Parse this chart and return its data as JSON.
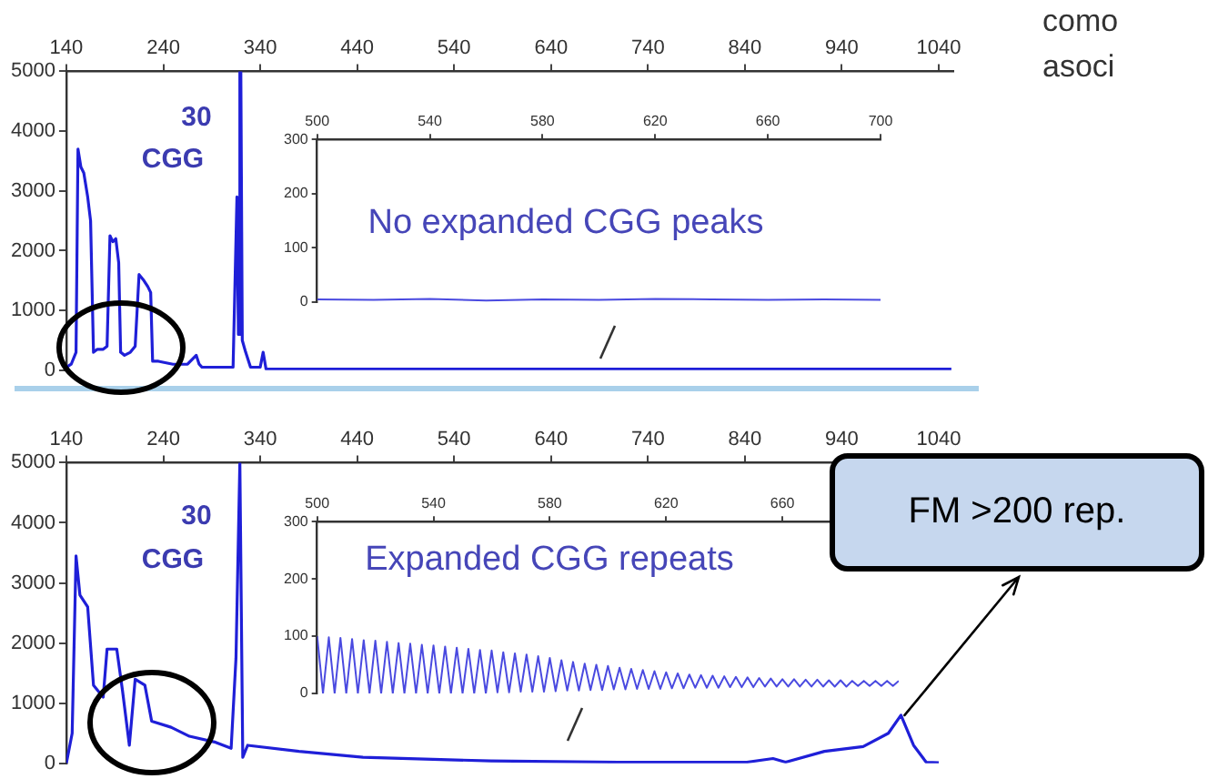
{
  "chart_data": [
    {
      "type": "line",
      "x": [
        140,
        145,
        150,
        152,
        155,
        158,
        162,
        165,
        168,
        172,
        178,
        182,
        185,
        188,
        191,
        194,
        196,
        200,
        206,
        211,
        215,
        220,
        224,
        227,
        229,
        235,
        250,
        265,
        274,
        277,
        280,
        300,
        312,
        316,
        317.5,
        319,
        320,
        321.5,
        325,
        330,
        340,
        343,
        346,
        360,
        450,
        600,
        800,
        1000,
        1053
      ],
      "values": [
        50,
        100,
        300,
        3700,
        3400,
        3300,
        2900,
        2500,
        300,
        350,
        350,
        400,
        2250,
        2150,
        2200,
        1800,
        300,
        250,
        300,
        400,
        1600,
        1500,
        1400,
        1300,
        150,
        150,
        100,
        100,
        250,
        100,
        50,
        50,
        50,
        2900,
        600,
        5000,
        5000,
        500,
        300,
        50,
        50,
        300,
        20,
        20,
        20,
        20,
        20,
        20,
        20
      ],
      "color": "#1f1fd8",
      "xlim": [
        140,
        1055
      ],
      "ylim": [
        0,
        5000
      ],
      "xticks": [
        140,
        240,
        340,
        440,
        540,
        640,
        740,
        840,
        940,
        1040
      ],
      "yticks": [
        0,
        1000,
        2000,
        3000,
        4000,
        5000
      ],
      "annotations": [
        "30",
        "CGG"
      ]
    },
    {
      "type": "line",
      "x": [
        500,
        520,
        540,
        560,
        580,
        600,
        620,
        640,
        660,
        680,
        700
      ],
      "values": [
        5,
        4,
        6,
        3,
        5,
        4,
        6,
        5,
        4,
        5,
        4
      ],
      "color": "#4a4ae0",
      "xlim": [
        500,
        700
      ],
      "ylim": [
        0,
        300
      ],
      "xticks": [
        500,
        540,
        580,
        620,
        660,
        700
      ],
      "yticks": [
        0,
        100,
        200,
        300
      ],
      "annotations": [
        "No expanded CGG peaks"
      ]
    },
    {
      "type": "line",
      "x": [
        140,
        146,
        150,
        154,
        162,
        168,
        178,
        182,
        192,
        198,
        205,
        211,
        221,
        228,
        248,
        267,
        294,
        310,
        315,
        319,
        322,
        327,
        380,
        446,
        578,
        710,
        842,
        869,
        882,
        922,
        962,
        988,
        1001,
        1014,
        1027,
        1040
      ],
      "values": [
        0,
        500,
        3450,
        2800,
        2600,
        1300,
        1100,
        1900,
        1900,
        1200,
        300,
        1400,
        1300,
        700,
        600,
        450,
        350,
        250,
        1750,
        5000,
        100,
        300,
        200,
        100,
        40,
        20,
        20,
        80,
        20,
        200,
        280,
        500,
        800,
        300,
        20,
        10
      ],
      "color": "#1f1fd8",
      "xlim": [
        140,
        1055
      ],
      "ylim": [
        0,
        5000
      ],
      "xticks": [
        140,
        240,
        340,
        440,
        540,
        640,
        740,
        840,
        940,
        1040
      ],
      "yticks": [
        0,
        1000,
        2000,
        3000,
        4000,
        5000
      ],
      "annotations": [
        "30",
        "CGG",
        {
          "text": "FM >200 rep.",
          "x": 1001,
          "y": 800
        }
      ]
    },
    {
      "type": "line",
      "x": [
        500,
        502,
        504,
        506,
        508,
        510,
        512,
        514,
        516,
        518,
        520,
        522,
        524,
        526,
        528,
        530,
        532,
        534,
        536,
        538,
        540,
        542,
        544,
        546,
        548,
        550,
        552,
        554,
        556,
        558,
        560,
        562,
        564,
        566,
        568,
        570,
        572,
        574,
        576,
        578,
        580,
        582,
        584,
        586,
        588,
        590,
        592,
        594,
        596,
        598,
        600,
        602,
        604,
        606,
        608,
        610,
        612,
        614,
        616,
        618,
        620,
        622,
        624,
        626,
        628,
        630,
        632,
        634,
        636,
        638,
        640,
        642,
        644,
        646,
        648,
        650,
        652,
        654,
        656,
        658,
        660,
        662,
        664,
        666,
        668,
        670,
        672,
        674,
        676,
        678,
        680,
        682,
        684,
        686,
        688,
        690,
        692,
        694,
        696,
        698,
        700
      ],
      "values": [
        100,
        0,
        98,
        0,
        97,
        0,
        95,
        0,
        93,
        0,
        92,
        0,
        90,
        0,
        88,
        0,
        87,
        0,
        85,
        0,
        84,
        0,
        82,
        0,
        80,
        0,
        78,
        0,
        76,
        0,
        75,
        2,
        72,
        2,
        70,
        3,
        68,
        3,
        65,
        3,
        62,
        4,
        58,
        5,
        55,
        5,
        52,
        6,
        50,
        6,
        48,
        7,
        45,
        7,
        43,
        8,
        41,
        8,
        39,
        8,
        37,
        9,
        35,
        9,
        33,
        10,
        32,
        10,
        31,
        10,
        30,
        11,
        29,
        11,
        28,
        11,
        27,
        12,
        26,
        12,
        25,
        12,
        25,
        12,
        24,
        12,
        24,
        12,
        23,
        12,
        23,
        12,
        22,
        13,
        22,
        13,
        22,
        13,
        22,
        13,
        22
      ],
      "color": "#4a4ae0",
      "xlim": [
        500,
        700
      ],
      "ylim": [
        0,
        300
      ],
      "xticks": [
        500,
        540,
        580,
        620,
        660
      ],
      "yticks": [
        0,
        100,
        200,
        300
      ],
      "annotations": [
        "Expanded CGG repeats"
      ]
    },
    {
      "type": "other",
      "annotations": [
        "como",
        "asoci"
      ]
    }
  ]
}
